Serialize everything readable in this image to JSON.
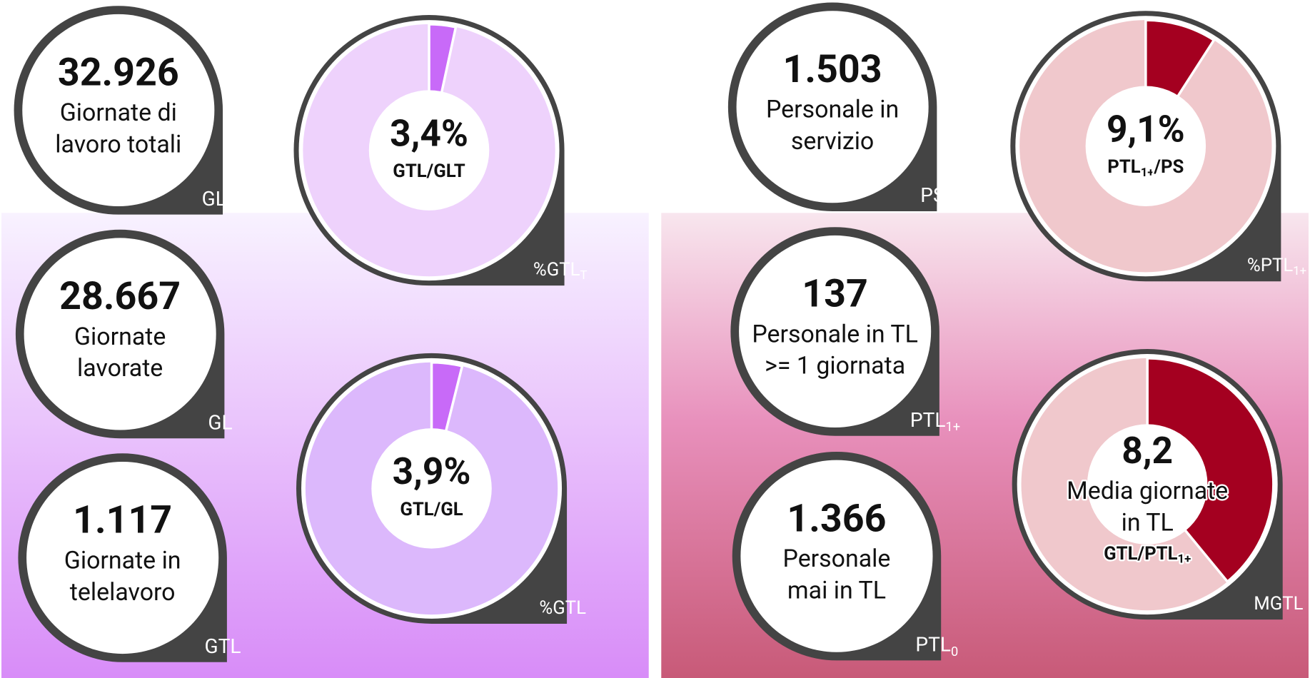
{
  "cards": [
    {
      "value": "32.926",
      "label": [
        "Giornate di",
        "lavoro totali"
      ],
      "code": [
        "GLT"
      ]
    },
    {
      "value": "28.667",
      "label": [
        "Giornate",
        "lavorate"
      ],
      "code": [
        "GL"
      ]
    },
    {
      "value": "1.117",
      "label": [
        "Giornate in",
        "telelavoro"
      ],
      "code": [
        "GTL"
      ]
    },
    {
      "value": "1.503",
      "label": [
        "Personale in",
        "servizio"
      ],
      "code": [
        "PS"
      ]
    },
    {
      "value": "137",
      "label": [
        "Personale in TL",
        ">= 1 giornata"
      ],
      "code": [
        "PTL",
        "1+"
      ]
    },
    {
      "value": "1.366",
      "label": [
        "Personale",
        "mai in TL"
      ],
      "code": [
        "PTL",
        "0"
      ]
    }
  ],
  "gauges": [
    {
      "value": 3.4,
      "value_label": "3,4%",
      "range": [
        0,
        100
      ],
      "label": [],
      "ratio": [
        "GTL/GLT"
      ],
      "code": [
        "%GTL",
        "T"
      ],
      "color": "#c86af8",
      "track": "#eed2fc"
    },
    {
      "value": 3.9,
      "value_label": "3,9%",
      "range": [
        0,
        100
      ],
      "label": [],
      "ratio": [
        "GTL/GL"
      ],
      "code": [
        "%GTL"
      ],
      "color": "#c86af8",
      "track": "#dcb8fc"
    },
    {
      "value": 9.1,
      "value_label": "9,1%",
      "range": [
        0,
        100
      ],
      "label": [],
      "ratio": [
        "PTL",
        "1+",
        "/PS"
      ],
      "code": [
        "%PTL",
        "1+"
      ],
      "color": "#a40020",
      "track": "#f0c8cc"
    },
    {
      "value": 8.2,
      "value_label": "8,2",
      "range": [
        0,
        21
      ],
      "label": [
        "Media giornate",
        "in TL"
      ],
      "ratio": [
        "GTL/PTL",
        "1+"
      ],
      "code": [
        "MGTL"
      ],
      "color": "#a40020",
      "track": "#f0c8cc"
    }
  ]
}
